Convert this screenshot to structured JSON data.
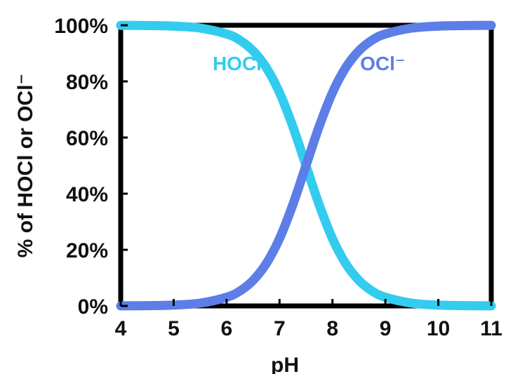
{
  "chart_data": {
    "type": "line",
    "xlabel": "pH",
    "ylabel": "% of HOCl or OCl⁻",
    "xlim": [
      4,
      11
    ],
    "ylim": [
      0,
      100
    ],
    "x_ticks": [
      4,
      5,
      6,
      7,
      8,
      9,
      10,
      11
    ],
    "y_ticks": [
      0,
      20,
      40,
      60,
      80,
      100
    ],
    "x_tick_labels": [
      "4",
      "5",
      "6",
      "7",
      "8",
      "9",
      "10",
      "11"
    ],
    "y_tick_labels": [
      "0%",
      "20%",
      "40%",
      "60%",
      "80%",
      "100%"
    ],
    "grid": false,
    "x": [
      4,
      4.5,
      5,
      5.5,
      6,
      6.25,
      6.5,
      6.75,
      7,
      7.25,
      7.5,
      7.75,
      8,
      8.25,
      8.5,
      8.75,
      9,
      9.5,
      10,
      10.5,
      11
    ],
    "series": [
      {
        "name": "HOCl",
        "color": "#33ccee",
        "values": [
          99.97,
          99.9,
          99.7,
          99.0,
          96.9,
          94.7,
          90.9,
          84.9,
          76.0,
          64.0,
          50.0,
          36.0,
          24.0,
          15.1,
          9.1,
          5.3,
          3.1,
          1.0,
          0.3,
          0.1,
          0.03
        ]
      },
      {
        "name": "OCl⁻",
        "color": "#5c7ee6",
        "values": [
          0.03,
          0.1,
          0.3,
          1.0,
          3.1,
          5.3,
          9.1,
          15.1,
          24.0,
          36.0,
          50.0,
          64.0,
          76.0,
          84.9,
          90.9,
          94.7,
          96.9,
          99.0,
          99.7,
          99.9,
          99.97
        ]
      }
    ],
    "series_label_positions_data": [
      {
        "x": 6.2,
        "y": 84
      },
      {
        "x": 8.95,
        "y": 84
      }
    ]
  }
}
